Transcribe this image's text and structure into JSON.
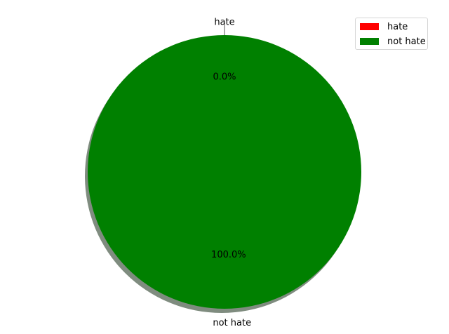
{
  "chart_data": {
    "type": "pie",
    "slices": [
      {
        "label": "hate",
        "value": 0.0,
        "pct_label": "0.0%",
        "color": "#ff0000"
      },
      {
        "label": "not hate",
        "value": 100.0,
        "pct_label": "100.0%",
        "color": "#008000"
      }
    ],
    "shadow": true,
    "start_angle_deg": 90,
    "legend": {
      "placement": "top-right",
      "entries": [
        {
          "label": "hate",
          "color": "#ff0000"
        },
        {
          "label": "not hate",
          "color": "#008000"
        }
      ]
    }
  }
}
